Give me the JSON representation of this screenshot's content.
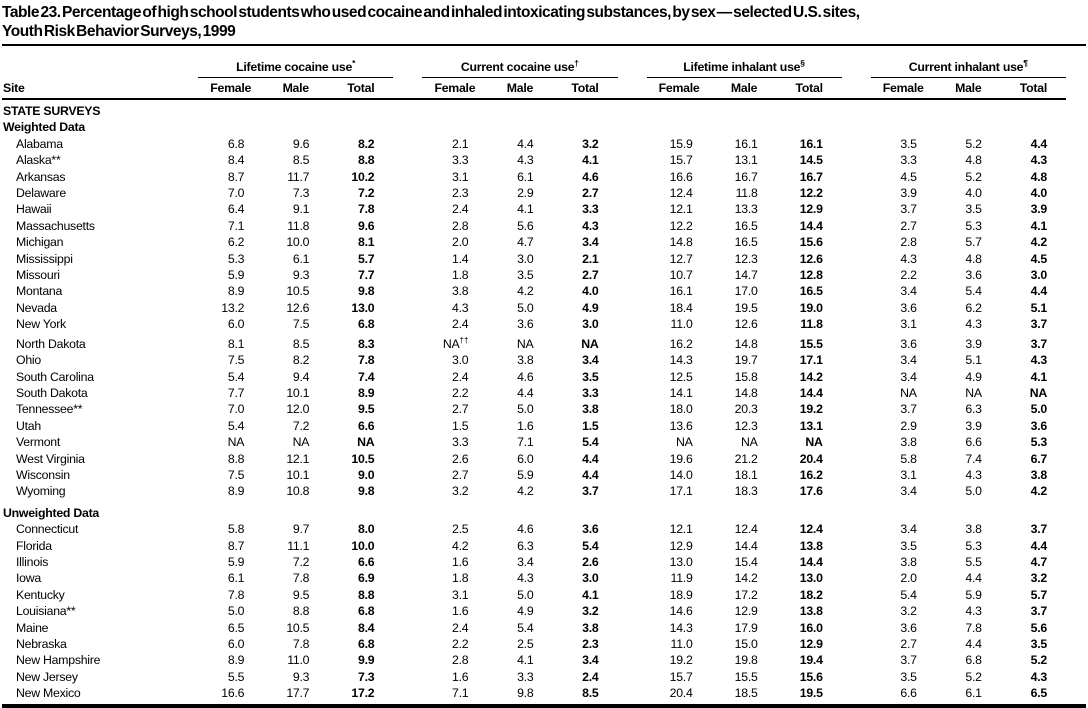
{
  "title": {
    "line1": "Table 23. Percentage of high school students who used cocaine and inhaled intoxicating substances, by sex — selected U.S. sites,",
    "line2": "Youth Risk Behavior Surveys, 1999"
  },
  "table": {
    "site_header": "Site",
    "groups": [
      {
        "label": "Lifetime cocaine use",
        "marker": "*"
      },
      {
        "label": "Current cocaine use",
        "marker": "†"
      },
      {
        "label": "Lifetime inhalant use",
        "marker": "§"
      },
      {
        "label": "Current inhalant use",
        "marker": "¶"
      }
    ],
    "sub_headers": [
      "Female",
      "Male",
      "Total"
    ],
    "sections": [
      {
        "header": "STATE SURVEYS",
        "subheader": "Weighted Data",
        "rows": [
          {
            "site": "Alabama",
            "values": [
              "6.8",
              "9.6",
              "8.2",
              "2.1",
              "4.4",
              "3.2",
              "15.9",
              "16.1",
              "16.1",
              "3.5",
              "5.2",
              "4.4"
            ]
          },
          {
            "site": "Alaska**",
            "values": [
              "8.4",
              "8.5",
              "8.8",
              "3.3",
              "4.3",
              "4.1",
              "15.7",
              "13.1",
              "14.5",
              "3.3",
              "4.8",
              "4.3"
            ]
          },
          {
            "site": "Arkansas",
            "values": [
              "8.7",
              "11.7",
              "10.2",
              "3.1",
              "6.1",
              "4.6",
              "16.6",
              "16.7",
              "16.7",
              "4.5",
              "5.2",
              "4.8"
            ]
          },
          {
            "site": "Delaware",
            "values": [
              "7.0",
              "7.3",
              "7.2",
              "2.3",
              "2.9",
              "2.7",
              "12.4",
              "11.8",
              "12.2",
              "3.9",
              "4.0",
              "4.0"
            ]
          },
          {
            "site": "Hawaii",
            "values": [
              "6.4",
              "9.1",
              "7.8",
              "2.4",
              "4.1",
              "3.3",
              "12.1",
              "13.3",
              "12.9",
              "3.7",
              "3.5",
              "3.9"
            ]
          },
          {
            "site": "Massachusetts",
            "values": [
              "7.1",
              "11.8",
              "9.6",
              "2.8",
              "5.6",
              "4.3",
              "12.2",
              "16.5",
              "14.4",
              "2.7",
              "5.3",
              "4.1"
            ]
          },
          {
            "site": "Michigan",
            "values": [
              "6.2",
              "10.0",
              "8.1",
              "2.0",
              "4.7",
              "3.4",
              "14.8",
              "16.5",
              "15.6",
              "2.8",
              "5.7",
              "4.2"
            ]
          },
          {
            "site": "Mississippi",
            "values": [
              "5.3",
              "6.1",
              "5.7",
              "1.4",
              "3.0",
              "2.1",
              "12.7",
              "12.3",
              "12.6",
              "4.3",
              "4.8",
              "4.5"
            ]
          },
          {
            "site": "Missouri",
            "values": [
              "5.9",
              "9.3",
              "7.7",
              "1.8",
              "3.5",
              "2.7",
              "10.7",
              "14.7",
              "12.8",
              "2.2",
              "3.6",
              "3.0"
            ]
          },
          {
            "site": "Montana",
            "values": [
              "8.9",
              "10.5",
              "9.8",
              "3.8",
              "4.2",
              "4.0",
              "16.1",
              "17.0",
              "16.5",
              "3.4",
              "5.4",
              "4.4"
            ]
          },
          {
            "site": "Nevada",
            "values": [
              "13.2",
              "12.6",
              "13.0",
              "4.3",
              "5.0",
              "4.9",
              "18.4",
              "19.5",
              "19.0",
              "3.6",
              "6.2",
              "5.1"
            ]
          },
          {
            "site": "New York",
            "values": [
              "6.0",
              "7.5",
              "6.8",
              "2.4",
              "3.6",
              "3.0",
              "11.0",
              "12.6",
              "11.8",
              "3.1",
              "4.3",
              "3.7"
            ]
          },
          {
            "site": "North Dakota",
            "values": [
              "8.1",
              "8.5",
              "8.3",
              "NA††",
              "NA",
              "NA",
              "16.2",
              "14.8",
              "15.5",
              "3.6",
              "3.9",
              "3.7"
            ]
          },
          {
            "site": "Ohio",
            "values": [
              "7.5",
              "8.2",
              "7.8",
              "3.0",
              "3.8",
              "3.4",
              "14.3",
              "19.7",
              "17.1",
              "3.4",
              "5.1",
              "4.3"
            ]
          },
          {
            "site": "South Carolina",
            "values": [
              "5.4",
              "9.4",
              "7.4",
              "2.4",
              "4.6",
              "3.5",
              "12.5",
              "15.8",
              "14.2",
              "3.4",
              "4.9",
              "4.1"
            ]
          },
          {
            "site": "South Dakota",
            "values": [
              "7.7",
              "10.1",
              "8.9",
              "2.2",
              "4.4",
              "3.3",
              "14.1",
              "14.8",
              "14.4",
              "NA",
              "NA",
              "NA"
            ]
          },
          {
            "site": "Tennessee**",
            "values": [
              "7.0",
              "12.0",
              "9.5",
              "2.7",
              "5.0",
              "3.8",
              "18.0",
              "20.3",
              "19.2",
              "3.7",
              "6.3",
              "5.0"
            ]
          },
          {
            "site": "Utah",
            "values": [
              "5.4",
              "7.2",
              "6.6",
              "1.5",
              "1.6",
              "1.5",
              "13.6",
              "12.3",
              "13.1",
              "2.9",
              "3.9",
              "3.6"
            ]
          },
          {
            "site": "Vermont",
            "values": [
              "NA",
              "NA",
              "NA",
              "3.3",
              "7.1",
              "5.4",
              "NA",
              "NA",
              "NA",
              "3.8",
              "6.6",
              "5.3"
            ]
          },
          {
            "site": "West Virginia",
            "values": [
              "8.8",
              "12.1",
              "10.5",
              "2.6",
              "6.0",
              "4.4",
              "19.6",
              "21.2",
              "20.4",
              "5.8",
              "7.4",
              "6.7"
            ]
          },
          {
            "site": "Wisconsin",
            "values": [
              "7.5",
              "10.1",
              "9.0",
              "2.7",
              "5.9",
              "4.4",
              "14.0",
              "18.1",
              "16.2",
              "3.1",
              "4.3",
              "3.8"
            ]
          },
          {
            "site": "Wyoming",
            "values": [
              "8.9",
              "10.8",
              "9.8",
              "3.2",
              "4.2",
              "3.7",
              "17.1",
              "18.3",
              "17.6",
              "3.4",
              "5.0",
              "4.2"
            ]
          }
        ]
      },
      {
        "subheader": "Unweighted Data",
        "rows": [
          {
            "site": "Connecticut",
            "values": [
              "5.8",
              "9.7",
              "8.0",
              "2.5",
              "4.6",
              "3.6",
              "12.1",
              "12.4",
              "12.4",
              "3.4",
              "3.8",
              "3.7"
            ]
          },
          {
            "site": "Florida",
            "values": [
              "8.7",
              "11.1",
              "10.0",
              "4.2",
              "6.3",
              "5.4",
              "12.9",
              "14.4",
              "13.8",
              "3.5",
              "5.3",
              "4.4"
            ]
          },
          {
            "site": "Illinois",
            "values": [
              "5.9",
              "7.2",
              "6.6",
              "1.6",
              "3.4",
              "2.6",
              "13.0",
              "15.4",
              "14.4",
              "3.8",
              "5.5",
              "4.7"
            ]
          },
          {
            "site": "Iowa",
            "values": [
              "6.1",
              "7.8",
              "6.9",
              "1.8",
              "4.3",
              "3.0",
              "11.9",
              "14.2",
              "13.0",
              "2.0",
              "4.4",
              "3.2"
            ]
          },
          {
            "site": "Kentucky",
            "values": [
              "7.8",
              "9.5",
              "8.8",
              "3.1",
              "5.0",
              "4.1",
              "18.9",
              "17.2",
              "18.2",
              "5.4",
              "5.9",
              "5.7"
            ]
          },
          {
            "site": "Louisiana**",
            "values": [
              "5.0",
              "8.8",
              "6.8",
              "1.6",
              "4.9",
              "3.2",
              "14.6",
              "12.9",
              "13.8",
              "3.2",
              "4.3",
              "3.7"
            ]
          },
          {
            "site": "Maine",
            "values": [
              "6.5",
              "10.5",
              "8.4",
              "2.4",
              "5.4",
              "3.8",
              "14.3",
              "17.9",
              "16.0",
              "3.6",
              "7.8",
              "5.6"
            ]
          },
          {
            "site": "Nebraska",
            "values": [
              "6.0",
              "7.8",
              "6.8",
              "2.2",
              "2.5",
              "2.3",
              "11.0",
              "15.0",
              "12.9",
              "2.7",
              "4.4",
              "3.5"
            ]
          },
          {
            "site": "New Hampshire",
            "values": [
              "8.9",
              "11.0",
              "9.9",
              "2.8",
              "4.1",
              "3.4",
              "19.2",
              "19.8",
              "19.4",
              "3.7",
              "6.8",
              "5.2"
            ]
          },
          {
            "site": "New Jersey",
            "values": [
              "5.5",
              "9.3",
              "7.3",
              "1.6",
              "3.3",
              "2.4",
              "15.7",
              "15.5",
              "15.6",
              "3.5",
              "5.2",
              "4.3"
            ]
          },
          {
            "site": "New Mexico",
            "values": [
              "16.6",
              "17.7",
              "17.2",
              "7.1",
              "9.8",
              "8.5",
              "20.4",
              "18.5",
              "19.5",
              "6.6",
              "6.1",
              "6.5"
            ]
          }
        ]
      }
    ]
  }
}
